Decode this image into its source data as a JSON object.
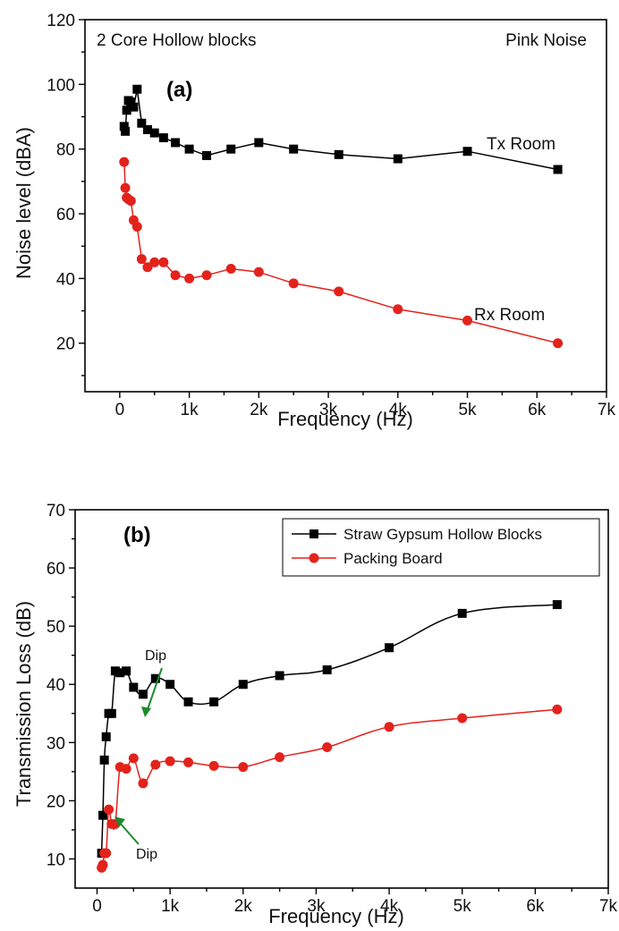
{
  "chart_data": [
    {
      "panel": "(a)",
      "type": "line",
      "title": "2 Core Hollow blocks",
      "annotation": "Pink Noise",
      "xlabel": "Frequency (Hz)",
      "ylabel": "Noise level (dBA)",
      "xlim": [
        -500,
        7000
      ],
      "ylim": [
        5,
        120
      ],
      "x_ticks": [
        0,
        1000,
        2000,
        3000,
        4000,
        5000,
        6000,
        7000
      ],
      "x_tick_labels": [
        "0",
        "1k",
        "2k",
        "3k",
        "4k",
        "5k",
        "6k",
        "7k"
      ],
      "y_ticks": [
        20,
        40,
        60,
        80,
        100,
        120
      ],
      "y_tick_labels": [
        "20",
        "40",
        "60",
        "80",
        "100",
        "120"
      ],
      "grid": false,
      "series": [
        {
          "name": "Tx Room",
          "color": "#000000",
          "marker": "square",
          "smooth": false,
          "x": [
            63,
            80,
            100,
            125,
            160,
            200,
            250,
            315,
            400,
            500,
            630,
            800,
            1000,
            1250,
            1600,
            2000,
            2500,
            3150,
            4000,
            5000,
            6300
          ],
          "y": [
            87,
            85.5,
            92,
            95,
            94.5,
            93,
            98.5,
            88,
            86,
            85,
            83.5,
            82,
            80,
            78,
            80,
            82,
            80,
            78.3,
            77,
            79.3,
            73.7
          ]
        },
        {
          "name": "Rx Room",
          "color": "#e3221c",
          "marker": "circle",
          "smooth": false,
          "x": [
            63,
            80,
            100,
            125,
            160,
            200,
            250,
            315,
            400,
            500,
            630,
            800,
            1000,
            1250,
            1600,
            2000,
            2500,
            3150,
            4000,
            5000,
            6300
          ],
          "y": [
            76,
            68,
            65,
            64.5,
            64,
            58,
            56,
            46,
            43.5,
            45,
            45,
            41,
            40,
            41,
            43,
            42,
            38.5,
            36,
            30.5,
            27,
            20
          ]
        }
      ]
    },
    {
      "panel": "(b)",
      "type": "line",
      "xlabel": "Frequency (Hz)",
      "ylabel": "Transmission Loss (dB)",
      "xlim": [
        -300,
        7000
      ],
      "ylim": [
        5,
        70
      ],
      "x_ticks": [
        0,
        1000,
        2000,
        3000,
        4000,
        5000,
        6000,
        7000
      ],
      "x_tick_labels": [
        "0",
        "1k",
        "2k",
        "3k",
        "4k",
        "5k",
        "6k",
        "7k"
      ],
      "y_ticks": [
        10,
        20,
        30,
        40,
        50,
        60,
        70
      ],
      "y_tick_labels": [
        "10",
        "20",
        "30",
        "40",
        "50",
        "60",
        "70"
      ],
      "grid": false,
      "legend_position": "top-right",
      "annotations": [
        "Dip",
        "Dip"
      ],
      "series": [
        {
          "name": "Straw Gypsum Hollow Blocks",
          "color": "#000000",
          "marker": "square",
          "smooth": true,
          "x": [
            63,
            80,
            100,
            125,
            160,
            200,
            250,
            315,
            400,
            500,
            630,
            800,
            1000,
            1250,
            1600,
            2000,
            2500,
            3150,
            4000,
            5000,
            6300
          ],
          "y": [
            11,
            17.5,
            27,
            31,
            35,
            35,
            42.3,
            42,
            42.3,
            39.5,
            38.3,
            41,
            40,
            37,
            37,
            40,
            41.5,
            42.5,
            46.3,
            52.2,
            53.7
          ]
        },
        {
          "name": "Packing Board",
          "color": "#e3221c",
          "marker": "circle",
          "smooth": true,
          "x": [
            63,
            80,
            100,
            125,
            160,
            200,
            250,
            315,
            400,
            500,
            630,
            800,
            1000,
            1250,
            1600,
            2000,
            2500,
            3150,
            4000,
            5000,
            6300
          ],
          "y": [
            8.5,
            9,
            11,
            11,
            18.5,
            16,
            16,
            25.8,
            25.5,
            27.3,
            23,
            26.2,
            26.8,
            26.6,
            26,
            25.8,
            27.5,
            29.2,
            32.7,
            34.2,
            35.7
          ]
        }
      ]
    }
  ]
}
